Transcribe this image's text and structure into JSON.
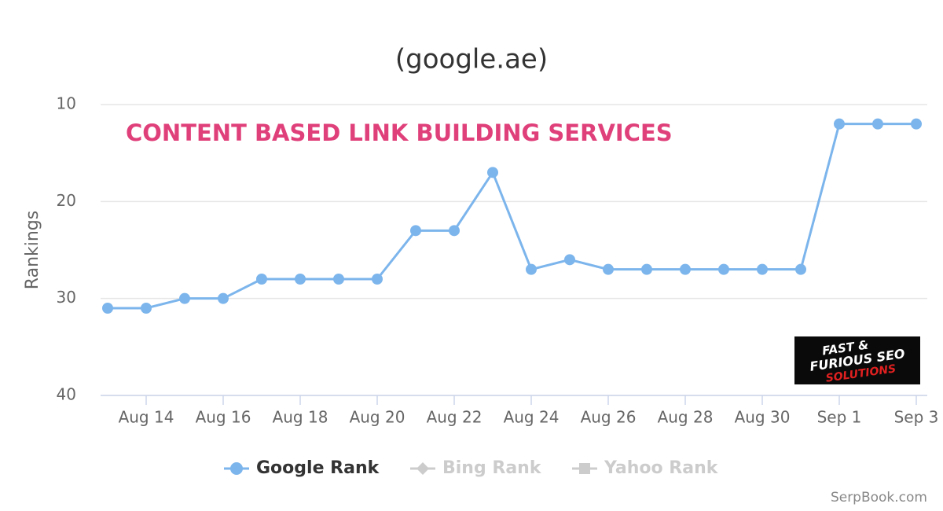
{
  "chart_data": {
    "type": "line",
    "title": "(google.ae)",
    "y_label": "Rankings",
    "annotation": "CONTENT BASED LINK BUILDING SERVICES",
    "logo": [
      "FAST &",
      "FURIOUS SEO",
      "SOLUTIONS"
    ],
    "credit": "SerpBook.com",
    "categories": [
      null,
      "Aug 14",
      null,
      "Aug 16",
      null,
      "Aug 18",
      null,
      "Aug 20",
      null,
      "Aug 22",
      null,
      "Aug 24",
      null,
      "Aug 26",
      null,
      "Aug 28",
      null,
      "Aug 30",
      null,
      "Sep 1",
      null,
      "Sep 3"
    ],
    "series": [
      {
        "name": "Google Rank",
        "color": "#7cb5ec",
        "values": [
          31,
          31,
          30,
          30,
          28,
          28,
          28,
          28,
          23,
          23,
          17,
          27,
          26,
          27,
          27,
          27,
          27,
          27,
          27,
          12,
          12,
          12
        ]
      },
      {
        "name": "Bing Rank",
        "color": "#cccccc",
        "visible": false
      },
      {
        "name": "Yahoo Rank",
        "color": "#cccccc",
        "visible": false
      }
    ],
    "ylim": [
      10,
      40
    ],
    "yticks": [
      10,
      20,
      30,
      40
    ],
    "reversed": true,
    "grid": true
  }
}
